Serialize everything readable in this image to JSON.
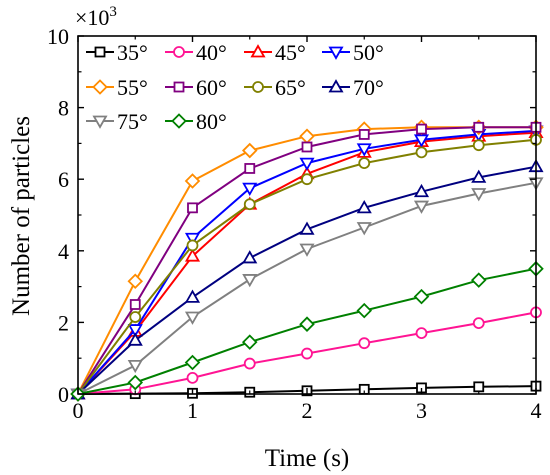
{
  "chart_data": {
    "type": "line",
    "xlabel": "Time (s)",
    "ylabel": "Number of particles",
    "y_multiplier_base": "×10",
    "y_multiplier_exp": "3",
    "xlim": [
      0,
      4
    ],
    "ylim": [
      0,
      10
    ],
    "x_ticks": [
      0,
      1,
      2,
      3,
      4
    ],
    "y_ticks": [
      0,
      2,
      4,
      6,
      8,
      10
    ],
    "grid": false,
    "legend_position": "top-left",
    "x": [
      0,
      0.5,
      1,
      1.5,
      2,
      2.5,
      3,
      3.5,
      4
    ],
    "series": [
      {
        "name": "35°",
        "color": "#000000",
        "marker": "square",
        "values": [
          0,
          0.01,
          0.02,
          0.05,
          0.09,
          0.13,
          0.17,
          0.2,
          0.22
        ]
      },
      {
        "name": "40°",
        "color": "#ff1493",
        "marker": "circle",
        "values": [
          0,
          0.13,
          0.45,
          0.85,
          1.13,
          1.42,
          1.7,
          1.98,
          2.28
        ]
      },
      {
        "name": "45°",
        "color": "#ff0000",
        "marker": "triangle-up",
        "values": [
          0,
          1.75,
          3.85,
          5.3,
          6.15,
          6.75,
          7.05,
          7.2,
          7.3
        ]
      },
      {
        "name": "50°",
        "color": "#0000ff",
        "marker": "triangle-down",
        "values": [
          0,
          1.8,
          4.35,
          5.75,
          6.45,
          6.85,
          7.1,
          7.25,
          7.35
        ]
      },
      {
        "name": "55°",
        "color": "#ff8c00",
        "marker": "diamond",
        "values": [
          0,
          3.15,
          5.95,
          6.8,
          7.2,
          7.4,
          7.45,
          7.45,
          7.45
        ]
      },
      {
        "name": "60°",
        "color": "#800080",
        "marker": "square",
        "values": [
          0,
          2.5,
          5.2,
          6.3,
          6.9,
          7.25,
          7.4,
          7.45,
          7.45
        ]
      },
      {
        "name": "65°",
        "color": "#808000",
        "marker": "circle",
        "values": [
          0,
          2.15,
          4.15,
          5.3,
          6.0,
          6.45,
          6.75,
          6.95,
          7.1
        ]
      },
      {
        "name": "70°",
        "color": "#000080",
        "marker": "triangle-up",
        "values": [
          0,
          1.5,
          2.7,
          3.8,
          4.6,
          5.2,
          5.65,
          6.05,
          6.35
        ]
      },
      {
        "name": "75°",
        "color": "#808080",
        "marker": "triangle-down",
        "values": [
          0,
          0.8,
          2.15,
          3.2,
          4.05,
          4.65,
          5.25,
          5.6,
          5.9
        ]
      },
      {
        "name": "80°",
        "color": "#008000",
        "marker": "diamond",
        "values": [
          0,
          0.32,
          0.88,
          1.45,
          1.95,
          2.33,
          2.72,
          3.18,
          3.5
        ]
      }
    ]
  }
}
